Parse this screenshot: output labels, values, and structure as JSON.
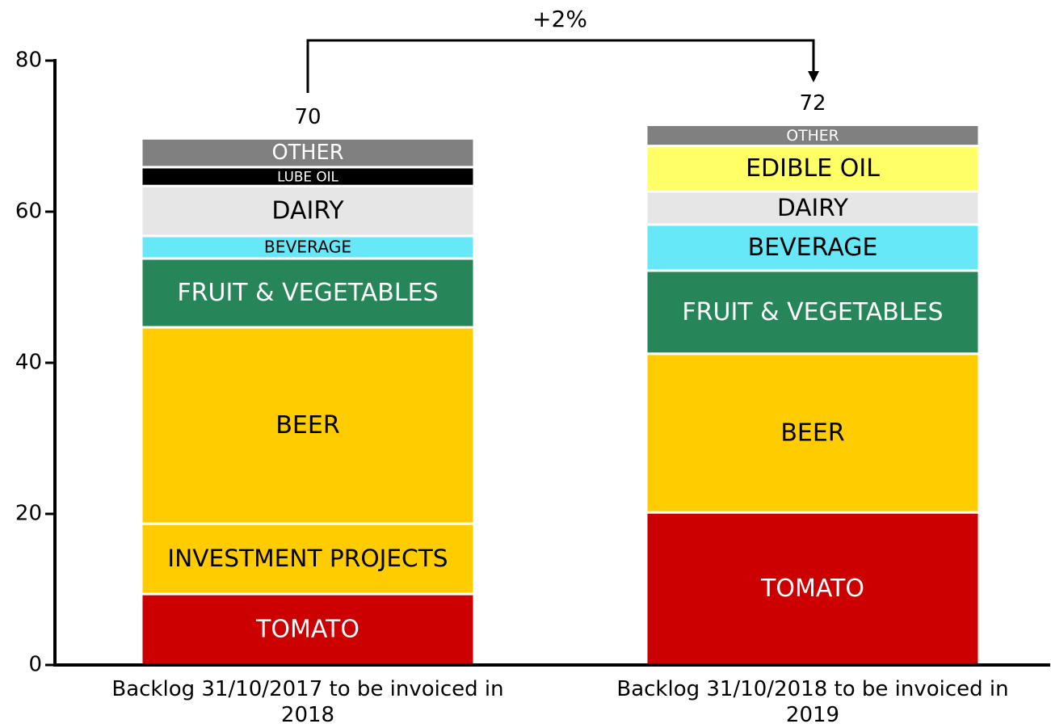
{
  "chart_data": {
    "type": "stacked_bar",
    "categories": [
      "Backlog 31/10/2017 to be invoiced in 2018",
      "Backlog 31/10/2018 to be invoiced in 2019"
    ],
    "series": [
      {
        "name": "TOMATO",
        "color": "#cc0000",
        "values": [
          9.4,
          20.2
        ]
      },
      {
        "name": "INVESTMENT PROJECTS",
        "color": "#ffcc00",
        "values": [
          9.3,
          null
        ]
      },
      {
        "name": "BEER",
        "color": "#ffcc00",
        "values": [
          26,
          21
        ]
      },
      {
        "name": "FRUIT & VEGETABLES",
        "color": "#27855a",
        "values": [
          9.1,
          11
        ]
      },
      {
        "name": "BEVERAGE",
        "color": "#66e8f8",
        "values": [
          3,
          6.1
        ]
      },
      {
        "name": "DAIRY",
        "color": "#e6e6e6",
        "values": [
          6.6,
          4.4
        ]
      },
      {
        "name": "LUBE OIL",
        "color": "#000000",
        "values": [
          2.5,
          null
        ]
      },
      {
        "name": "EDIBLE OIL",
        "color": "#ffff66",
        "values": [
          null,
          6
        ]
      },
      {
        "name": "OTHER",
        "color": "#808080",
        "values": [
          3.8,
          2.8
        ]
      }
    ],
    "totals": [
      70,
      72
    ],
    "annotation": "+2%",
    "ylim": [
      0,
      80
    ],
    "yticks": [
      0,
      20,
      40,
      60,
      80
    ]
  }
}
